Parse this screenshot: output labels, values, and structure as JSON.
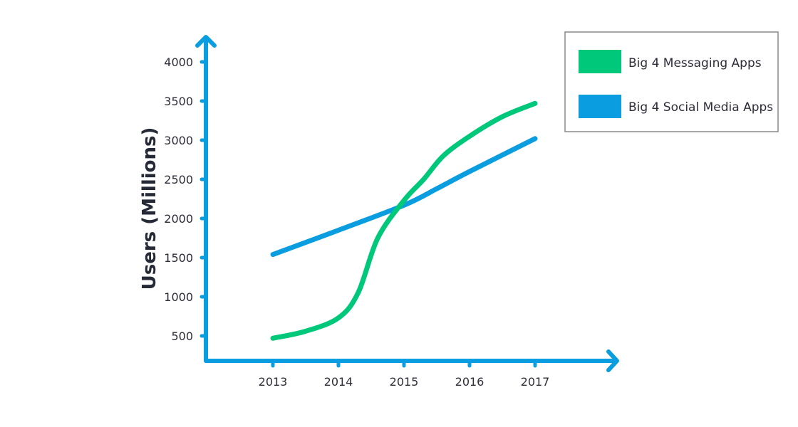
{
  "chart_data": {
    "type": "line",
    "title": "",
    "xlabel": "",
    "ylabel": "Users (Millions)",
    "categories": [
      "2013",
      "2014",
      "2015",
      "2016",
      "2017"
    ],
    "x": [
      2013,
      2014,
      2015,
      2016,
      2017
    ],
    "yticks": [
      500,
      1000,
      1500,
      2000,
      2500,
      3000,
      3500,
      4000
    ],
    "ylim": [
      300,
      4200
    ],
    "grid": false,
    "legend_position": "top-right",
    "series": [
      {
        "name": "Big 4 Messaging Apps",
        "color": "#00c87a",
        "points": [
          [
            2013,
            470
          ],
          [
            2013.5,
            560
          ],
          [
            2014,
            730
          ],
          [
            2014.3,
            1050
          ],
          [
            2014.6,
            1750
          ],
          [
            2015,
            2230
          ],
          [
            2015.3,
            2500
          ],
          [
            2015.6,
            2800
          ],
          [
            2016,
            3050
          ],
          [
            2016.5,
            3300
          ],
          [
            2017,
            3470
          ]
        ]
      },
      {
        "name": "Big 4 Social Media Apps",
        "color": "#0a9ee0",
        "points": [
          [
            2013,
            1540
          ],
          [
            2014,
            1850
          ],
          [
            2015,
            2170
          ],
          [
            2015.5,
            2380
          ],
          [
            2016,
            2600
          ],
          [
            2017,
            3020
          ]
        ]
      }
    ],
    "axis_color": "#0a9ee0"
  }
}
